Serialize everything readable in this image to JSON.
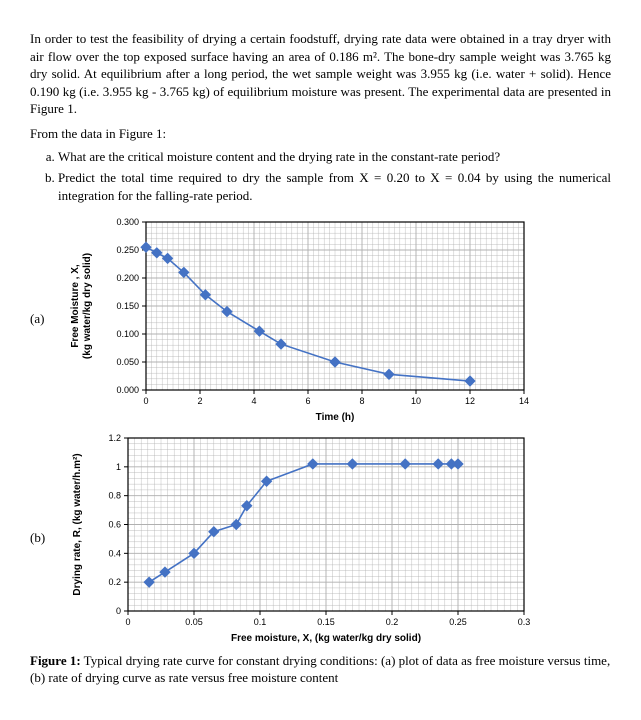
{
  "intro": "In order to test the feasibility of drying a certain foodstuff, drying rate data were obtained in a tray dryer with air flow over the top exposed surface having an area of 0.186 m². The bone-dry sample weight was 3.765 kg dry solid. At equilibrium after a long period, the wet sample weight was 3.955 kg (i.e. water + solid). Hence 0.190 kg (i.e. 3.955 kg - 3.765 kg) of equilibrium moisture was present. The experimental data are presented in Figure 1.",
  "fromline": "From the data in Figure 1:",
  "q_a": "What are the critical moisture content and the drying rate in the constant-rate period?",
  "q_b": "Predict the total time required to dry the sample from X = 0.20 to X = 0.04 by using the numerical integration for the falling-rate period.",
  "label_a": "(a)",
  "label_b": "(b)",
  "fig_caption_bold": "Figure 1:",
  "fig_caption_rest": " Typical drying rate curve for constant drying conditions: (a) plot of data as free moisture versus time, (b) rate of drying curve as rate versus free moisture content",
  "chart_a": {
    "type": "line",
    "title": "",
    "xlabel": "Time (h)",
    "ylabel_line1": "Free Moisture , X,",
    "ylabel_line2": "(kg water/kg dry solid)",
    "xlim": [
      0,
      14
    ],
    "ylim": [
      0.0,
      0.3
    ],
    "xtick_step": 2,
    "ytick_step": 0.05,
    "xticks": [
      0,
      2,
      4,
      6,
      8,
      10,
      12,
      14
    ],
    "yticks": [
      "0.000",
      "0.050",
      "0.100",
      "0.150",
      "0.200",
      "0.250",
      "0.300"
    ],
    "series_color": "#4472c4",
    "marker": "diamond",
    "marker_size": 5,
    "line_width": 1.6,
    "background_color": "#ffffff",
    "grid_color": "#b0b0b0",
    "border_color": "#000000",
    "label_fontsize": 10,
    "tick_fontsize": 9,
    "points": [
      [
        0,
        0.255
      ],
      [
        0.4,
        0.245
      ],
      [
        0.8,
        0.235
      ],
      [
        1.4,
        0.21
      ],
      [
        2.2,
        0.17
      ],
      [
        3.0,
        0.14
      ],
      [
        4.2,
        0.105
      ],
      [
        5.0,
        0.082
      ],
      [
        7.0,
        0.05
      ],
      [
        9.0,
        0.028
      ],
      [
        12.0,
        0.016
      ]
    ]
  },
  "chart_b": {
    "type": "line",
    "xlabel": "Free moisture, X, (kg water/kg dry solid)",
    "ylabel": "Drying rate, R, (kg water/h.m²)",
    "xlim": [
      0,
      0.3
    ],
    "ylim": [
      0,
      1.2
    ],
    "xtick_step": 0.05,
    "ytick_step": 0.2,
    "xticks": [
      "0",
      "0.05",
      "0.1",
      "0.15",
      "0.2",
      "0.25",
      "0.3"
    ],
    "yticks": [
      "0",
      "0.2",
      "0.4",
      "0.6",
      "0.8",
      "1",
      "1.2"
    ],
    "series_color": "#4472c4",
    "marker": "diamond",
    "marker_size": 5,
    "line_width": 1.6,
    "background_color": "#ffffff",
    "grid_color": "#b0b0b0",
    "border_color": "#000000",
    "label_fontsize": 10,
    "tick_fontsize": 9,
    "points": [
      [
        0.016,
        0.2
      ],
      [
        0.028,
        0.27
      ],
      [
        0.05,
        0.4
      ],
      [
        0.065,
        0.55
      ],
      [
        0.082,
        0.6
      ],
      [
        0.09,
        0.73
      ],
      [
        0.105,
        0.9
      ],
      [
        0.14,
        1.02
      ],
      [
        0.17,
        1.02
      ],
      [
        0.21,
        1.02
      ],
      [
        0.235,
        1.02
      ],
      [
        0.245,
        1.02
      ],
      [
        0.25,
        1.02
      ]
    ]
  }
}
